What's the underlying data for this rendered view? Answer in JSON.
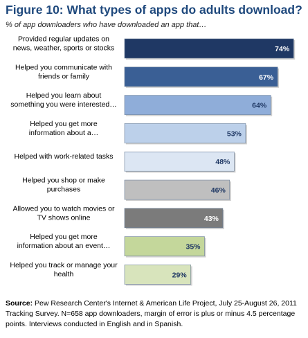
{
  "title": "Figure 10:  What types of apps do adults download?",
  "subtitle": "% of app downloaders who have downloaded an app that…",
  "source": {
    "label": "Source:",
    "text": "Pew Research Center's Internet & American Life Project, July 25-August 26, 2011 Tracking Survey.  N=658 app downloaders, margin of error is plus or minus 4.5 percentage points.  Interviews conducted in English and in Spanish."
  },
  "chart_data": {
    "type": "bar",
    "orientation": "horizontal",
    "title": "Figure 10:  What types of apps do adults download?",
    "subtitle": "% of app downloaders who have downloaded an app that…",
    "xlabel": "",
    "ylabel": "",
    "xlim": [
      0,
      80
    ],
    "grid": false,
    "legend": "none",
    "categories": [
      [
        "Provided regular updates on",
        "news, weather, sports or stocks"
      ],
      [
        "Helped you communicate with",
        "friends or family"
      ],
      [
        "Helped you learn about",
        "something you were interested…"
      ],
      [
        "Helped you get more",
        "information about a…"
      ],
      [
        "Helped with work-related tasks"
      ],
      [
        "Helped you shop or make",
        "purchases"
      ],
      [
        "Allowed you to watch movies or",
        "TV shows online"
      ],
      [
        "Helped you get more",
        "information about an event…"
      ],
      [
        "Helped you track or manage your",
        "health"
      ]
    ],
    "values": [
      74,
      67,
      64,
      53,
      48,
      46,
      43,
      35,
      29
    ],
    "value_labels": [
      "74%",
      "67%",
      "64%",
      "53%",
      "48%",
      "46%",
      "43%",
      "35%",
      "29%"
    ],
    "bar_colors": [
      "#1f3864",
      "#3a5f95",
      "#8fadd9",
      "#bcd0ea",
      "#dce6f3",
      "#bfbfbf",
      "#7b7b7b",
      "#c4d79b",
      "#d8e4bc"
    ],
    "label_colors": [
      "#ffffff",
      "#ffffff",
      "#1f3864",
      "#1f3864",
      "#1f3864",
      "#1f3864",
      "#ffffff",
      "#1f3864",
      "#1f3864"
    ]
  }
}
